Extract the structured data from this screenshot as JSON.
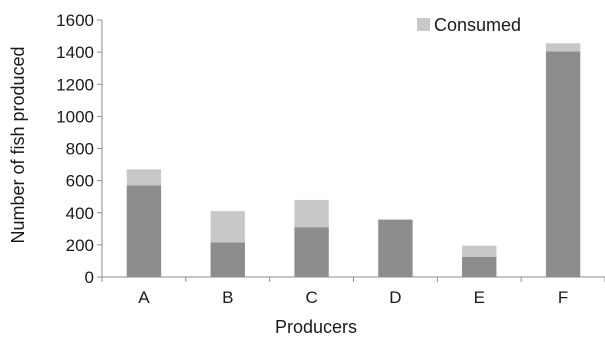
{
  "chart_data": {
    "type": "bar",
    "stacked": true,
    "categories": [
      "A",
      "B",
      "C",
      "D",
      "E",
      "F"
    ],
    "series": [
      {
        "name": "",
        "color": "#8c8c8c",
        "values": [
          570,
          215,
          310,
          355,
          125,
          1405
        ]
      },
      {
        "name": "Consumed",
        "color": "#c8c8c8",
        "values": [
          100,
          195,
          170,
          5,
          70,
          50
        ]
      }
    ],
    "yticks": [
      "0",
      "200",
      "400",
      "600",
      "800",
      "1000",
      "1200",
      "1400",
      "1600"
    ],
    "ylim": [
      0,
      1600
    ],
    "xlabel": "Producers",
    "ylabel": "Number of fish produced",
    "legend": {
      "position": "top-right",
      "entries": [
        "Consumed"
      ]
    },
    "grid": false
  }
}
